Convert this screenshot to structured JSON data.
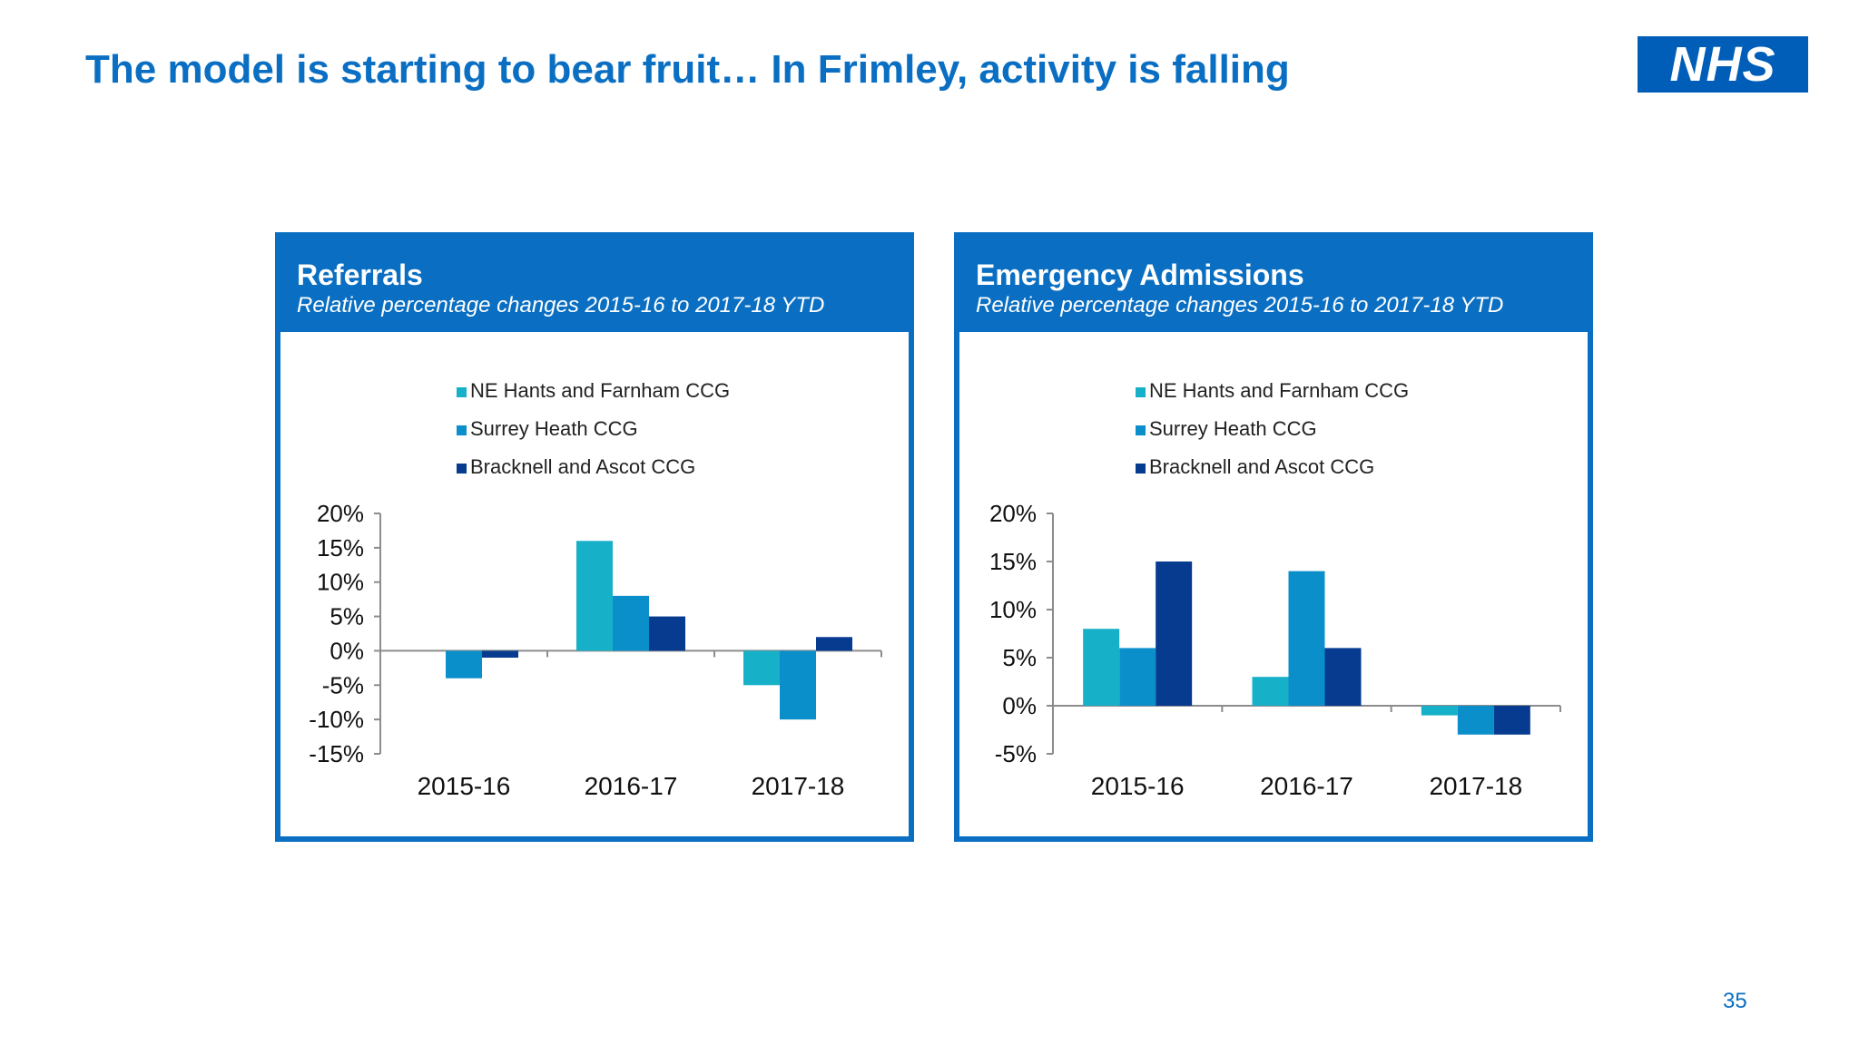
{
  "slide": {
    "title": "The model is starting to bear fruit… In Frimley, activity is falling",
    "logo_text": "NHS",
    "page_number": "35"
  },
  "colors": {
    "title": "#0a6fc2",
    "panel_border": "#0a6fc2",
    "logo_bg": "#005eb8"
  },
  "chart_data": [
    {
      "type": "bar",
      "title": "Referrals",
      "subtitle": "Relative percentage changes 2015-16 to 2017-18 YTD",
      "categories": [
        "2015-16",
        "2016-17",
        "2017-18"
      ],
      "series": [
        {
          "name": "NE Hants and Farnham CCG",
          "color": "#16b0c8",
          "values": [
            0,
            16,
            -5
          ]
        },
        {
          "name": "Surrey Heath CCG",
          "color": "#0b8fcb",
          "values": [
            -4,
            8,
            -10
          ]
        },
        {
          "name": "Bracknell and Ascot CCG",
          "color": "#063b8f",
          "values": [
            -1,
            5,
            2
          ]
        }
      ],
      "ylim": [
        -15,
        20
      ],
      "yticks": [
        20,
        15,
        10,
        5,
        0,
        -5,
        -10,
        -15
      ],
      "ytick_labels": [
        "20%",
        "15%",
        "10%",
        "5%",
        "0%",
        "-5%",
        "-10%",
        "-15%"
      ],
      "legend_position": "top",
      "grid": false
    },
    {
      "type": "bar",
      "title": "Emergency Admissions",
      "subtitle": "Relative percentage changes 2015-16 to 2017-18 YTD",
      "categories": [
        "2015-16",
        "2016-17",
        "2017-18"
      ],
      "series": [
        {
          "name": "NE Hants and Farnham CCG",
          "color": "#16b0c8",
          "values": [
            8,
            3,
            -1
          ]
        },
        {
          "name": "Surrey Heath CCG",
          "color": "#0b8fcb",
          "values": [
            6,
            14,
            -3
          ]
        },
        {
          "name": "Bracknell and Ascot CCG",
          "color": "#063b8f",
          "values": [
            15,
            6,
            -3
          ]
        }
      ],
      "ylim": [
        -5,
        20
      ],
      "yticks": [
        20,
        15,
        10,
        5,
        0,
        -5
      ],
      "ytick_labels": [
        "20%",
        "15%",
        "10%",
        "5%",
        "0%",
        "-5%"
      ],
      "legend_position": "top",
      "grid": false
    }
  ]
}
